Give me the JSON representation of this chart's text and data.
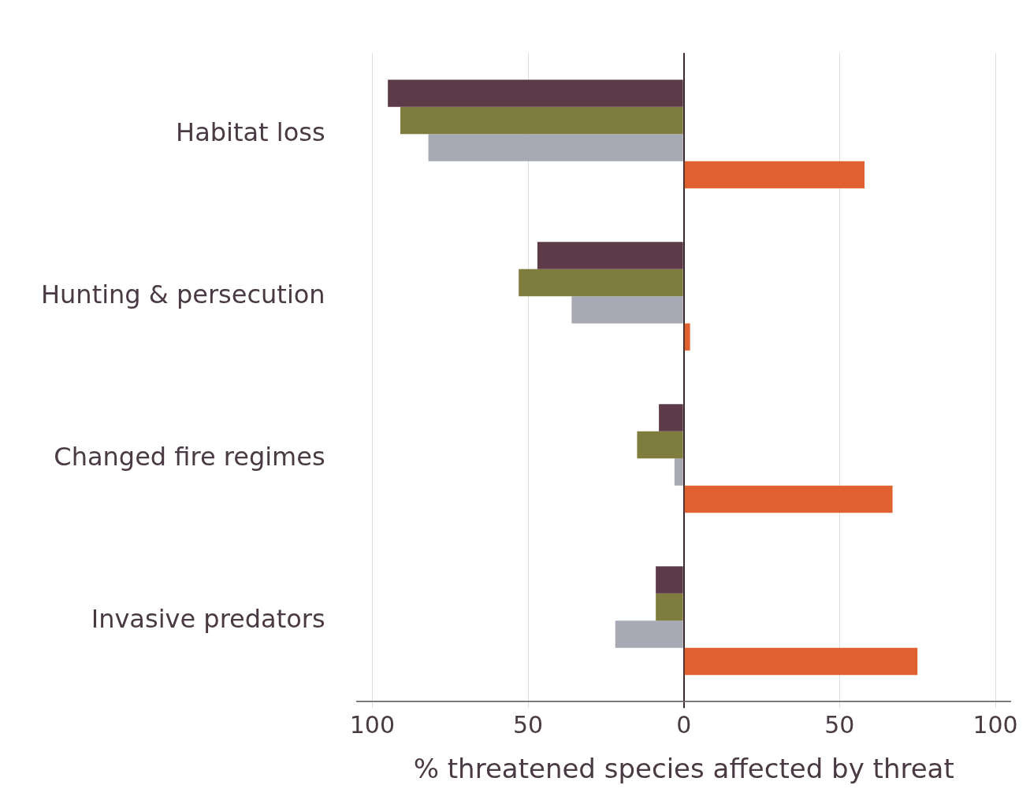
{
  "chart_data": {
    "type": "bar",
    "orientation": "horizontal",
    "xlabel": "% threatened species affected by threat",
    "categories": [
      "Habitat loss",
      "Hunting & persecution",
      "Changed fire regimes",
      "Invasive predators"
    ],
    "series": [
      {
        "color": "#5c3a47",
        "values": [
          -95,
          -47,
          -8,
          -9
        ]
      },
      {
        "color": "#7f7d3e",
        "values": [
          -91,
          -53,
          -15,
          -9
        ]
      },
      {
        "color": "#a7a9b4",
        "values": [
          -82,
          -36,
          -3,
          -22
        ]
      },
      {
        "color": "#e06030",
        "values": [
          58,
          2,
          67,
          75
        ]
      }
    ],
    "xlim": [
      -105,
      105
    ],
    "xticks": [
      {
        "value": -100,
        "label": "100"
      },
      {
        "value": -50,
        "label": "50"
      },
      0,
      50,
      100
    ],
    "grid": "x",
    "legend": false
  }
}
